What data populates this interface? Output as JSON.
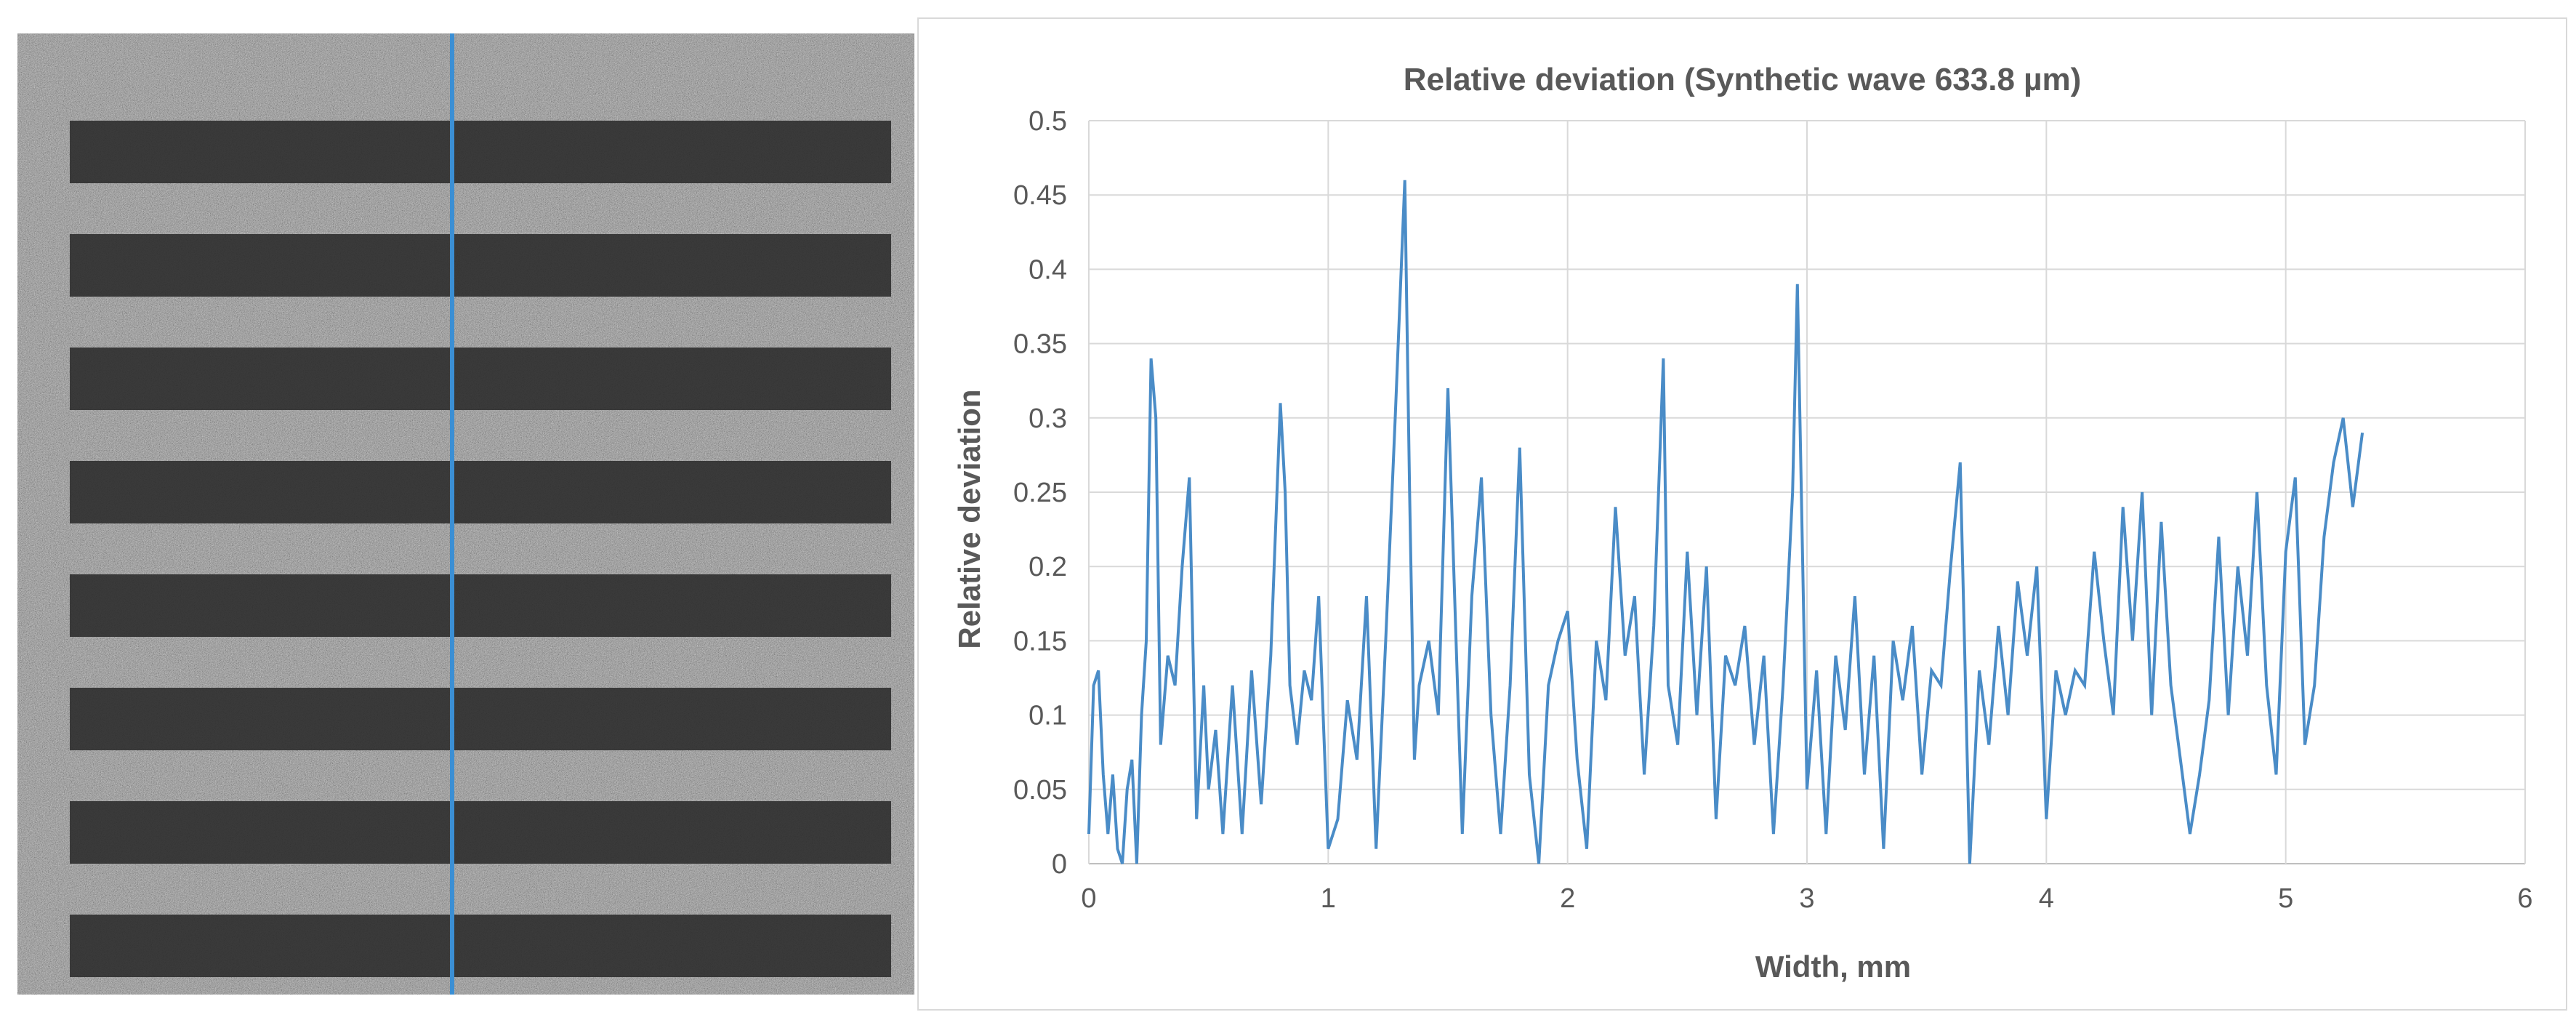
{
  "image_panel": {
    "description_line_color": "#3b8fd4"
  },
  "chart_data": {
    "type": "line",
    "title": "Relative deviation (Synthetic wave 633.8 µm)",
    "xlabel": "Width, mm",
    "ylabel": "Relative deviation",
    "xlim": [
      0,
      6
    ],
    "ylim": [
      0,
      0.5
    ],
    "xticks": [
      0,
      1,
      2,
      3,
      4,
      5,
      6
    ],
    "yticks": [
      0,
      0.05,
      0.1,
      0.15,
      0.2,
      0.25,
      0.3,
      0.35,
      0.4,
      0.45,
      0.5
    ],
    "ytick_labels": [
      "0",
      "0.05",
      "0.1",
      "0.15",
      "0.2",
      "0.25",
      "0.3",
      "0.35",
      "0.4",
      "0.45",
      "0.5"
    ],
    "grid": true,
    "line_color": "#4a8cc7",
    "series": [
      {
        "x": [
          0,
          0.02,
          0.04,
          0.06,
          0.08,
          0.1,
          0.12,
          0.14,
          0.16,
          0.18,
          0.2,
          0.22,
          0.24,
          0.26,
          0.28,
          0.3,
          0.33,
          0.36,
          0.39,
          0.42,
          0.45,
          0.48,
          0.5,
          0.53,
          0.56,
          0.6,
          0.64,
          0.68,
          0.72,
          0.76,
          0.8,
          0.82,
          0.84,
          0.87,
          0.9,
          0.93,
          0.96,
          1.0,
          1.04,
          1.08,
          1.12,
          1.16,
          1.2,
          1.24,
          1.28,
          1.32,
          1.34,
          1.36,
          1.38,
          1.42,
          1.46,
          1.5,
          1.54,
          1.56,
          1.6,
          1.64,
          1.68,
          1.72,
          1.76,
          1.8,
          1.84,
          1.88,
          1.92,
          1.96,
          2.0,
          2.04,
          2.08,
          2.12,
          2.16,
          2.2,
          2.24,
          2.28,
          2.32,
          2.36,
          2.4,
          2.42,
          2.46,
          2.5,
          2.54,
          2.58,
          2.62,
          2.66,
          2.7,
          2.74,
          2.78,
          2.82,
          2.86,
          2.9,
          2.94,
          2.96,
          3.0,
          3.04,
          3.08,
          3.12,
          3.16,
          3.2,
          3.24,
          3.28,
          3.32,
          3.36,
          3.4,
          3.44,
          3.48,
          3.52,
          3.56,
          3.6,
          3.64,
          3.68,
          3.72,
          3.76,
          3.8,
          3.84,
          3.88,
          3.92,
          3.96,
          4.0,
          4.04,
          4.08,
          4.12,
          4.16,
          4.2,
          4.24,
          4.28,
          4.32,
          4.36,
          4.4,
          4.44,
          4.48,
          4.52,
          4.56,
          4.6,
          4.64,
          4.68,
          4.72,
          4.76,
          4.8,
          4.84,
          4.88,
          4.92,
          4.96,
          5.0,
          5.04,
          5.08,
          5.12,
          5.16,
          5.2,
          5.24,
          5.28,
          5.32
        ],
        "y": [
          0.02,
          0.12,
          0.13,
          0.06,
          0.02,
          0.06,
          0.01,
          0.0,
          0.05,
          0.07,
          0.0,
          0.1,
          0.15,
          0.34,
          0.3,
          0.08,
          0.14,
          0.12,
          0.2,
          0.26,
          0.03,
          0.12,
          0.05,
          0.09,
          0.02,
          0.12,
          0.02,
          0.13,
          0.04,
          0.14,
          0.31,
          0.25,
          0.12,
          0.08,
          0.13,
          0.11,
          0.18,
          0.01,
          0.03,
          0.11,
          0.07,
          0.18,
          0.01,
          0.15,
          0.3,
          0.46,
          0.25,
          0.07,
          0.12,
          0.15,
          0.1,
          0.32,
          0.12,
          0.02,
          0.18,
          0.26,
          0.1,
          0.02,
          0.12,
          0.28,
          0.06,
          0.0,
          0.12,
          0.15,
          0.17,
          0.07,
          0.01,
          0.15,
          0.11,
          0.24,
          0.14,
          0.18,
          0.06,
          0.16,
          0.34,
          0.12,
          0.08,
          0.21,
          0.1,
          0.2,
          0.03,
          0.14,
          0.12,
          0.16,
          0.08,
          0.14,
          0.02,
          0.12,
          0.25,
          0.39,
          0.05,
          0.13,
          0.02,
          0.14,
          0.09,
          0.18,
          0.06,
          0.14,
          0.01,
          0.15,
          0.11,
          0.16,
          0.06,
          0.13,
          0.12,
          0.2,
          0.27,
          0.0,
          0.13,
          0.08,
          0.16,
          0.1,
          0.19,
          0.14,
          0.2,
          0.03,
          0.13,
          0.1,
          0.13,
          0.12,
          0.21,
          0.15,
          0.1,
          0.24,
          0.15,
          0.25,
          0.1,
          0.23,
          0.12,
          0.07,
          0.02,
          0.06,
          0.11,
          0.22,
          0.1,
          0.2,
          0.14,
          0.25,
          0.12,
          0.06,
          0.21,
          0.26,
          0.08,
          0.12,
          0.22,
          0.27,
          0.3,
          0.24,
          0.29
        ]
      }
    ]
  }
}
